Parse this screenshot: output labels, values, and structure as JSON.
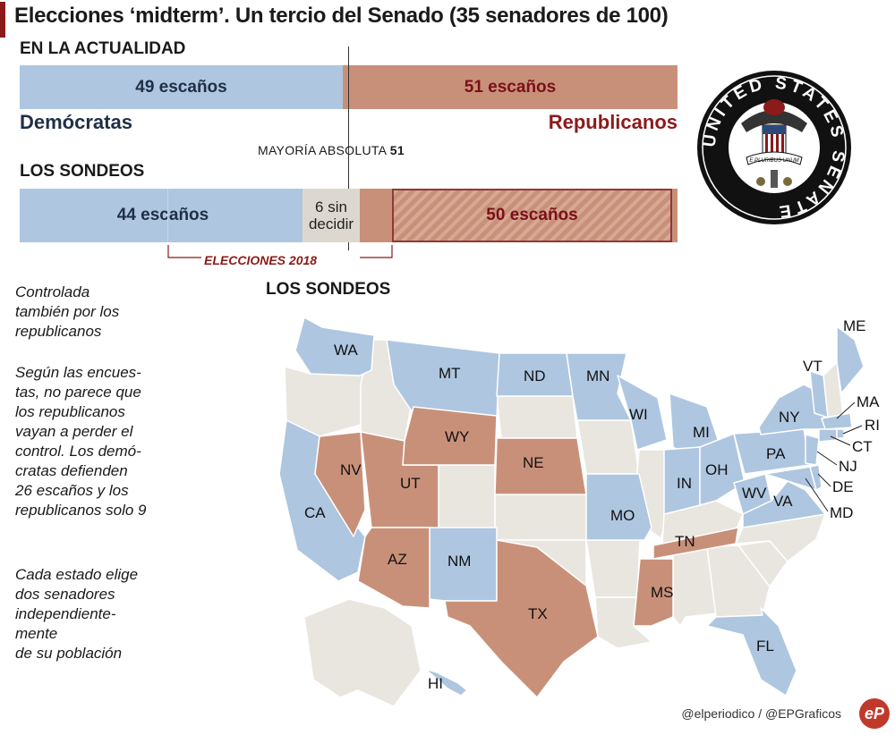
{
  "title": "Elecciones ‘midterm’. Un tercio del Senado (35 senadores de 100)",
  "current": {
    "heading": "EN LA ACTUALIDAD",
    "dem_label": "49 escaños",
    "rep_label": "51 escaños",
    "dem_party": "Demócratas",
    "rep_party": "Republicanos"
  },
  "majority": {
    "text": "MAYORÍA ABSOLUTA",
    "value": "51"
  },
  "polls": {
    "heading": "LOS SONDEOS",
    "dem_label": "44 escaños",
    "undecided_line1": "6 sin",
    "undecided_line2": "decidir",
    "rep_label": "50 escaños",
    "elections_label": "ELECCIONES 2018"
  },
  "map_heading": "LOS SONDEOS",
  "notes": {
    "gray": "Controlada\ntambién por los\nrepublicanos",
    "polls": "Según las encues-\ntas, no parece que\nlos republicanos\nvayan a perder el\ncontrol. Los demó-\ncratas defienden\n26 escaños y los\nrepublicanos solo 9",
    "states": "Cada estado elige\ndos senadores\nindependiente-\nmente\nde su población"
  },
  "seal_text": "UNITED STATES SENATE",
  "seal_motto": "E PLURIBUS UNUM",
  "credit": "@elperiodico / @EPGraficos",
  "logo": "eP",
  "colors": {
    "dem": "#aec6e0",
    "rep": "#c99079",
    "undecided": "#dcd8cf",
    "accent": "#8b1a1a",
    "gray_state": "#e8e6df"
  },
  "chart_data": [
    {
      "type": "bar",
      "orientation": "horizontal-stacked",
      "title": "EN LA ACTUALIDAD",
      "series": [
        {
          "name": "Demócratas",
          "values": [
            49
          ]
        },
        {
          "name": "Republicanos",
          "values": [
            51
          ]
        }
      ],
      "xlim": [
        0,
        100
      ],
      "reference": {
        "label": "MAYORÍA ABSOLUTA",
        "value": 51
      }
    },
    {
      "type": "bar",
      "orientation": "horizontal-stacked",
      "title": "LOS SONDEOS",
      "series": [
        {
          "name": "Demócratas",
          "values": [
            44
          ]
        },
        {
          "name": "sin decidir",
          "values": [
            6
          ]
        },
        {
          "name": "Republicanos",
          "values": [
            50
          ]
        }
      ],
      "xlim": [
        0,
        100
      ]
    },
    {
      "type": "map",
      "title": "LOS SONDEOS",
      "dem_states": [
        "WA",
        "CA",
        "MT",
        "ND",
        "MN",
        "WI",
        "MI",
        "NM",
        "MO",
        "IN",
        "OH",
        "PA",
        "WV",
        "VA",
        "MD",
        "DE",
        "NJ",
        "NY",
        "CT",
        "RI",
        "MA",
        "VT",
        "ME",
        "FL",
        "HI"
      ],
      "rep_states": [
        "NV",
        "UT",
        "AZ",
        "WY",
        "NE",
        "TX",
        "TN",
        "MS"
      ]
    }
  ]
}
